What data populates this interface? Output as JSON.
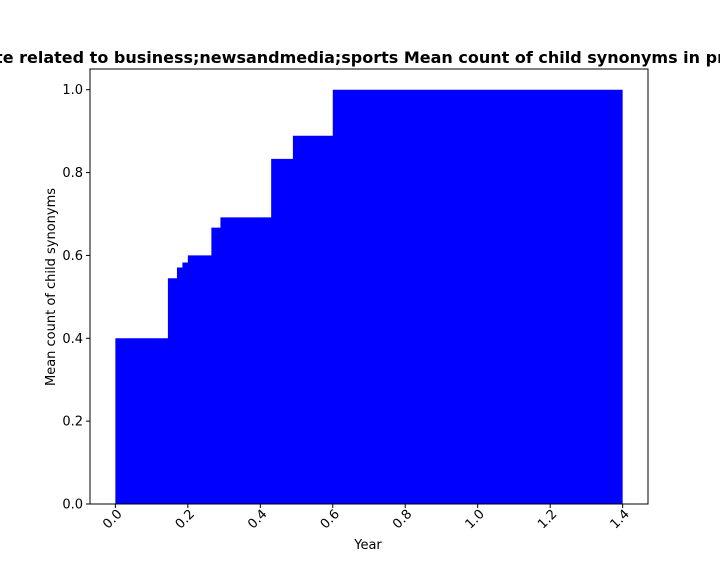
{
  "chart_data": {
    "type": "area",
    "title": "te related to business;newsandmedia;sports Mean count of child synonyms in pr",
    "xlabel": "Year",
    "ylabel": "Mean count of child synonyms",
    "xlim": [
      -0.07,
      1.47
    ],
    "ylim": [
      0,
      1.05
    ],
    "xticks": [
      "0.0",
      "0.2",
      "0.4",
      "0.6",
      "0.8",
      "1.0",
      "1.2",
      "1.4"
    ],
    "yticks": [
      "0.0",
      "0.2",
      "0.4",
      "0.6",
      "0.8",
      "1.0"
    ],
    "grid": false,
    "fill_color": "#0000ff",
    "x": [
      0.0,
      0.145,
      0.17,
      0.185,
      0.2,
      0.265,
      0.29,
      0.43,
      0.49,
      0.6,
      1.4
    ],
    "y": [
      0.4,
      0.545,
      0.571,
      0.583,
      0.6,
      0.667,
      0.692,
      0.833,
      0.889,
      1.0,
      1.0
    ]
  }
}
